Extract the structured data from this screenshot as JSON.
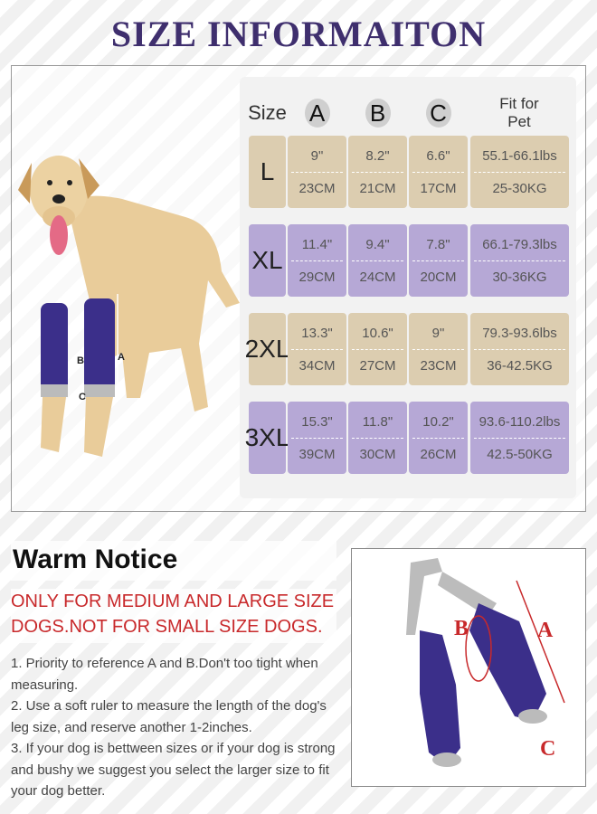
{
  "title": "SIZE INFORMAITON",
  "table": {
    "headers": {
      "size": "Size",
      "a": "A",
      "b": "B",
      "c": "C",
      "fit": "Fit for Pet"
    },
    "rows": [
      {
        "size": "L",
        "a_in": "9\"",
        "a_cm": "23CM",
        "b_in": "8.2\"",
        "b_cm": "21CM",
        "c_in": "6.6\"",
        "c_cm": "17CM",
        "lbs": "55.1-66.1lbs",
        "kg": "25-30KG"
      },
      {
        "size": "XL",
        "a_in": "11.4\"",
        "a_cm": "29CM",
        "b_in": "9.4\"",
        "b_cm": "24CM",
        "c_in": "7.8\"",
        "c_cm": "20CM",
        "lbs": "66.1-79.3lbs",
        "kg": "30-36KG"
      },
      {
        "size": "2XL",
        "a_in": "13.3\"",
        "a_cm": "34CM",
        "b_in": "10.6\"",
        "b_cm": "27CM",
        "c_in": "9\"",
        "c_cm": "23CM",
        "lbs": "79.3-93.6lbs",
        "kg": "36-42.5KG"
      },
      {
        "size": "3XL",
        "a_in": "15.3\"",
        "a_cm": "39CM",
        "b_in": "11.8\"",
        "b_cm": "30CM",
        "c_in": "10.2\"",
        "c_cm": "26CM",
        "lbs": "93.6-110.2lbs",
        "kg": "42.5-50KG"
      }
    ]
  },
  "dog_labels": {
    "a": "A",
    "b": "B",
    "c": "C"
  },
  "notice": {
    "heading": "Warm Notice",
    "warning": "ONLY FOR MEDIUM AND LARGE SIZE DOGS.NOT FOR SMALL SIZE DOGS.",
    "items": [
      "1. Priority to reference A and B.Don't too tight when measuring.",
      "2. Use a soft ruler to measure the length of the dog's leg size, and reserve another 1-2inches.",
      "3. If your dog is bettween sizes or if your dog is strong and bushy we suggest you select the larger size to fit your dog better."
    ]
  },
  "product_labels": {
    "a": "A",
    "b": "B",
    "c": "C"
  },
  "colors": {
    "title": "#3f2f6e",
    "tan": "#dccdb0",
    "purple": "#b6a8d6",
    "warning": "#c8292b",
    "sleeve": "#3b2f8a"
  }
}
